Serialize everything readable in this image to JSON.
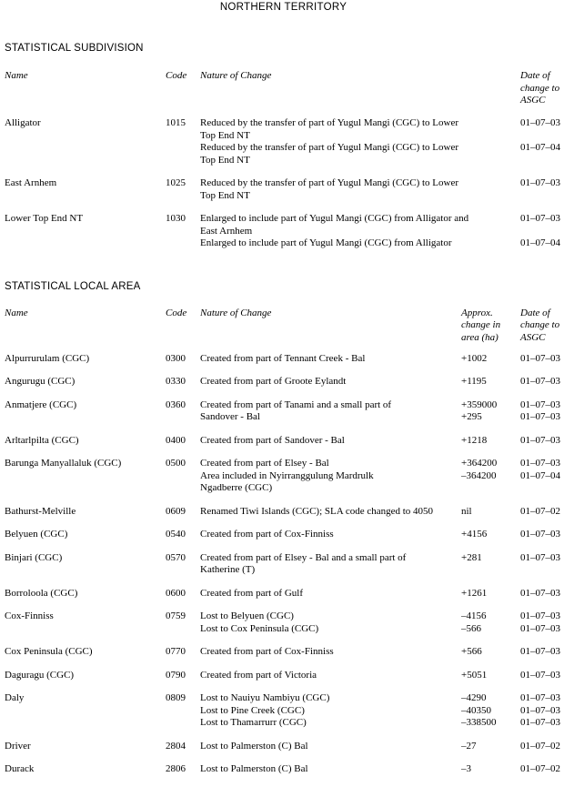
{
  "page": {
    "title": "NORTHERN TERRITORY"
  },
  "ssd": {
    "heading": "STATISTICAL SUBDIVISION",
    "columns": {
      "name": "Name",
      "code": "Code",
      "nature": "Nature of Change",
      "date": "Date of\nchange to\nASGC"
    },
    "rows": [
      {
        "name": "Alligator",
        "code": "1015",
        "changes": [
          {
            "nature": "Reduced by the transfer of part of Yugul Mangi (CGC) to Lower\nTop End NT",
            "date": "01–07–03"
          },
          {
            "nature": "Reduced by the transfer of part of Yugul Mangi (CGC) to Lower\nTop End NT",
            "date": "01–07–04"
          }
        ]
      },
      {
        "name": "East Arnhem",
        "code": "1025",
        "changes": [
          {
            "nature": "Reduced by the transfer of part of Yugul Mangi (CGC) to Lower\nTop End NT",
            "date": "01–07–03"
          }
        ]
      },
      {
        "name": "Lower Top End NT",
        "code": "1030",
        "changes": [
          {
            "nature": "Enlarged to include part of Yugul Mangi (CGC) from Alligator and\nEast Arnhem",
            "date": "01–07–03"
          },
          {
            "nature": "Enlarged to include part of Yugul Mangi (CGC) from Alligator",
            "date": "01–07–04"
          }
        ]
      }
    ]
  },
  "sla": {
    "heading": "STATISTICAL LOCAL AREA",
    "columns": {
      "name": "Name",
      "code": "Code",
      "nature": "Nature of Change",
      "area": "Approx.\nchange in\narea (ha)",
      "date": "Date of\nchange to\nASGC"
    },
    "rows": [
      {
        "name": "Alpurrurulam (CGC)",
        "code": "0300",
        "changes": [
          {
            "nature": "Created from part of Tennant Creek - Bal",
            "area": "+1002",
            "date": "01–07–03"
          }
        ]
      },
      {
        "name": "Angurugu (CGC)",
        "code": "0330",
        "changes": [
          {
            "nature": "Created from part of Groote Eylandt",
            "area": "+1195",
            "date": "01–07–03"
          }
        ]
      },
      {
        "name": "Anmatjere (CGC)",
        "code": "0360",
        "changes": [
          {
            "nature": "Created from part of Tanami and a small part of\nSandover - Bal",
            "area": "+359000\n+295",
            "date": "01–07–03\n01–07–03"
          }
        ]
      },
      {
        "name": "Arltarlpilta (CGC)",
        "code": "0400",
        "changes": [
          {
            "nature": "Created from part of Sandover - Bal",
            "area": "+1218",
            "date": "01–07–03"
          }
        ]
      },
      {
        "name": "Barunga Manyallaluk (CGC)",
        "code": "0500",
        "changes": [
          {
            "nature": "Created from part of Elsey - Bal",
            "area": "+364200",
            "date": "01–07–03"
          },
          {
            "nature": "Area included in Nyirranggulung Mardrulk\nNgadberre (CGC)",
            "area": "–364200",
            "date": "01–07–04"
          }
        ]
      },
      {
        "name": "Bathurst-Melville",
        "code": "0609",
        "changes": [
          {
            "nature": "Renamed Tiwi Islands (CGC); SLA code changed to 4050",
            "area": "nil",
            "date": "01–07–02"
          }
        ]
      },
      {
        "name": "Belyuen (CGC)",
        "code": "0540",
        "changes": [
          {
            "nature": "Created from part of Cox-Finniss",
            "area": "+4156",
            "date": "01–07–03"
          }
        ]
      },
      {
        "name": "Binjari (CGC)",
        "code": "0570",
        "changes": [
          {
            "nature": "Created from part of Elsey - Bal and a small part of\nKatherine (T)",
            "area": "+281",
            "date": "01–07–03"
          }
        ]
      },
      {
        "name": "Borroloola (CGC)",
        "code": "0600",
        "changes": [
          {
            "nature": "Created from part of Gulf",
            "area": "+1261",
            "date": "01–07–03"
          }
        ]
      },
      {
        "name": "Cox-Finniss",
        "code": "0759",
        "changes": [
          {
            "nature": "Lost to Belyuen (CGC)",
            "area": "–4156",
            "date": "01–07–03"
          },
          {
            "nature": "Lost to Cox Peninsula (CGC)",
            "area": "–566",
            "date": "01–07–03"
          }
        ]
      },
      {
        "name": "Cox Peninsula (CGC)",
        "code": "0770",
        "changes": [
          {
            "nature": "Created from part of Cox-Finniss",
            "area": "+566",
            "date": "01–07–03"
          }
        ]
      },
      {
        "name": "Daguragu (CGC)",
        "code": "0790",
        "changes": [
          {
            "nature": "Created from part of Victoria",
            "area": "+5051",
            "date": "01–07–03"
          }
        ]
      },
      {
        "name": "Daly",
        "code": "0809",
        "changes": [
          {
            "nature": "Lost to Nauiyu Nambiyu (CGC)",
            "area": "–4290",
            "date": "01–07–03"
          },
          {
            "nature": "Lost to Pine Creek (CGC)",
            "area": "–40350",
            "date": "01–07–03"
          },
          {
            "nature": "Lost to Thamarrurr (CGC)",
            "area": "–338500",
            "date": "01–07–03"
          }
        ]
      },
      {
        "name": "Driver",
        "code": "2804",
        "changes": [
          {
            "nature": "Lost to Palmerston (C) Bal",
            "area": "–27",
            "date": "01–07–02"
          }
        ]
      },
      {
        "name": "Durack",
        "code": "2806",
        "changes": [
          {
            "nature": "Lost to Palmerston (C) Bal",
            "area": "–3",
            "date": "01–07–02"
          }
        ]
      }
    ]
  }
}
